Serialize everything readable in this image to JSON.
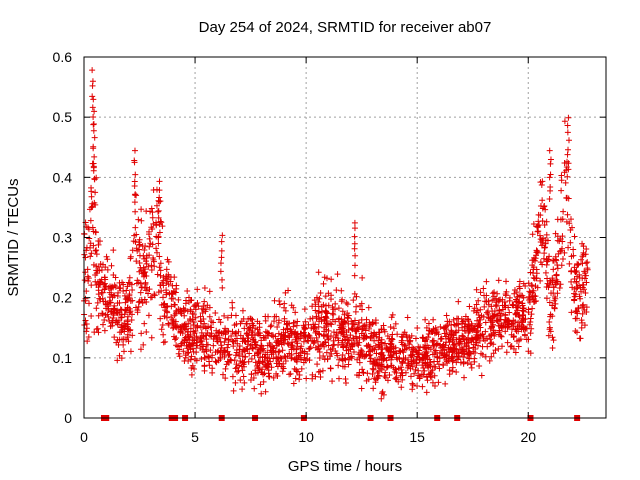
{
  "chart_data": {
    "type": "scatter",
    "title": "Day 254 of 2024, SRMTID for receiver ab07",
    "xlabel": "GPS time / hours",
    "ylabel": "SRMTID / TECUs",
    "xlim": [
      0,
      23.5
    ],
    "ylim": [
      0,
      0.6
    ],
    "x_ticks": [
      0,
      5,
      10,
      15,
      20
    ],
    "x_tick_labels": [
      "0",
      "5",
      "10",
      "15",
      "20"
    ],
    "y_ticks": [
      0,
      0.1,
      0.2,
      0.3,
      0.4,
      0.5,
      0.6
    ],
    "y_tick_labels": [
      "0",
      "0.1",
      "0.2",
      "0.3",
      "0.4",
      "0.5",
      "0.6"
    ],
    "grid": true,
    "legend": "none",
    "marker": "plus",
    "color": "#e00000",
    "baseline_marker_x": [
      0.9,
      1.0,
      3.95,
      4.1,
      4.55,
      6.2,
      7.7,
      9.9,
      12.9,
      13.8,
      15.9,
      16.8,
      20.1,
      22.2
    ],
    "envelope_hours": [
      0.0,
      0.3,
      0.4,
      0.6,
      1.0,
      1.5,
      2.0,
      2.3,
      2.6,
      3.0,
      3.3,
      3.6,
      4.0,
      4.5,
      5.0,
      5.5,
      6.0,
      6.5,
      7.0,
      7.5,
      8.0,
      8.5,
      9.0,
      9.5,
      10.0,
      10.5,
      11.0,
      11.5,
      12.0,
      12.5,
      13.0,
      13.5,
      14.0,
      14.5,
      15.0,
      15.5,
      16.0,
      16.5,
      17.0,
      17.5,
      18.0,
      18.5,
      19.0,
      19.5,
      20.0,
      20.3,
      20.6,
      21.0,
      21.4,
      21.7,
      22.0,
      22.3,
      22.7
    ],
    "envelope_mean": [
      0.22,
      0.28,
      0.4,
      0.22,
      0.21,
      0.17,
      0.17,
      0.28,
      0.23,
      0.27,
      0.3,
      0.2,
      0.17,
      0.14,
      0.15,
      0.14,
      0.13,
      0.13,
      0.11,
      0.13,
      0.1,
      0.12,
      0.13,
      0.12,
      0.13,
      0.15,
      0.15,
      0.14,
      0.13,
      0.14,
      0.11,
      0.1,
      0.11,
      0.1,
      0.1,
      0.11,
      0.11,
      0.12,
      0.12,
      0.14,
      0.15,
      0.16,
      0.17,
      0.17,
      0.17,
      0.24,
      0.34,
      0.17,
      0.3,
      0.38,
      0.22,
      0.2,
      0.24
    ],
    "envelope_spread": [
      0.08,
      0.1,
      0.18,
      0.06,
      0.06,
      0.05,
      0.05,
      0.1,
      0.08,
      0.09,
      0.09,
      0.06,
      0.05,
      0.05,
      0.06,
      0.05,
      0.05,
      0.05,
      0.05,
      0.05,
      0.04,
      0.05,
      0.05,
      0.05,
      0.05,
      0.06,
      0.06,
      0.06,
      0.06,
      0.06,
      0.05,
      0.05,
      0.05,
      0.04,
      0.04,
      0.05,
      0.04,
      0.04,
      0.04,
      0.05,
      0.05,
      0.05,
      0.05,
      0.05,
      0.05,
      0.08,
      0.1,
      0.07,
      0.1,
      0.1,
      0.07,
      0.06,
      0.05
    ],
    "peaks": [
      {
        "x": 0.4,
        "y": 0.58
      },
      {
        "x": 0.45,
        "y": 0.49
      },
      {
        "x": 2.3,
        "y": 0.45
      },
      {
        "x": 3.4,
        "y": 0.4
      },
      {
        "x": 6.2,
        "y": 0.31
      },
      {
        "x": 12.2,
        "y": 0.33
      },
      {
        "x": 21.0,
        "y": 0.45
      },
      {
        "x": 21.8,
        "y": 0.5
      }
    ],
    "points_per_hour": 110
  }
}
